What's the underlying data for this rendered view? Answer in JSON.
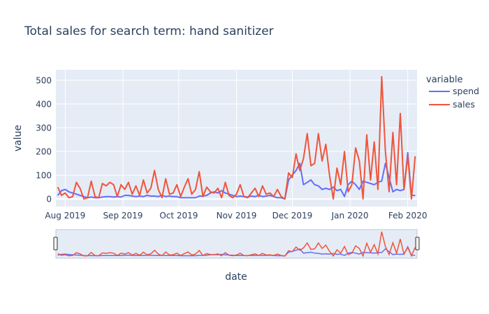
{
  "chart_data": {
    "type": "line",
    "title": "Total sales for search term: hand sanitizer",
    "xlabel": "date",
    "ylabel": "value",
    "x_start": "2019-07-28",
    "x_step_days": 2,
    "xlim": [
      "2019-07-27",
      "2020-02-06"
    ],
    "ylim": [
      -32,
      544
    ],
    "yticks": [
      0,
      100,
      200,
      300,
      400,
      500
    ],
    "xticks": [
      {
        "date": "2019-08-01",
        "label": "Aug 2019"
      },
      {
        "date": "2019-09-01",
        "label": "Sep 2019"
      },
      {
        "date": "2019-10-01",
        "label": "Oct 2019"
      },
      {
        "date": "2019-11-01",
        "label": "Nov 2019"
      },
      {
        "date": "2019-12-01",
        "label": "Dec 2019"
      },
      {
        "date": "2020-01-01",
        "label": "Jan 2020"
      },
      {
        "date": "2020-02-01",
        "label": "Feb 2020"
      }
    ],
    "grid": true,
    "legend": {
      "title": "variable",
      "placement": "top-right outside"
    },
    "rangeslider": true,
    "series": [
      {
        "name": "spend",
        "color": "#636efa",
        "values": [
          15,
          35,
          40,
          30,
          25,
          20,
          15,
          10,
          5,
          8,
          5,
          5,
          8,
          10,
          10,
          8,
          10,
          8,
          15,
          15,
          12,
          10,
          12,
          10,
          15,
          12,
          12,
          10,
          15,
          10,
          12,
          10,
          10,
          5,
          5,
          5,
          5,
          5,
          12,
          12,
          15,
          25,
          30,
          25,
          35,
          25,
          20,
          15,
          10,
          12,
          10,
          8,
          12,
          10,
          15,
          10,
          12,
          15,
          10,
          5,
          5,
          0,
          80,
          100,
          120,
          150,
          60,
          70,
          80,
          60,
          55,
          40,
          45,
          40,
          50,
          35,
          40,
          10,
          60,
          75,
          60,
          40,
          75,
          70,
          65,
          60,
          70,
          75,
          150,
          90,
          30,
          40,
          35,
          40,
          195,
          15,
          15
        ]
      },
      {
        "name": "sales",
        "color": "#ef553b",
        "values": [
          50,
          15,
          25,
          5,
          10,
          70,
          45,
          0,
          5,
          75,
          10,
          5,
          65,
          55,
          70,
          60,
          10,
          60,
          40,
          70,
          20,
          55,
          15,
          80,
          25,
          45,
          120,
          40,
          5,
          85,
          20,
          25,
          60,
          10,
          50,
          85,
          20,
          40,
          115,
          10,
          50,
          30,
          25,
          45,
          5,
          70,
          15,
          5,
          20,
          60,
          10,
          5,
          25,
          45,
          10,
          55,
          20,
          25,
          10,
          40,
          10,
          0,
          110,
          90,
          190,
          120,
          170,
          275,
          140,
          150,
          275,
          160,
          230,
          100,
          0,
          130,
          60,
          200,
          30,
          60,
          215,
          160,
          0,
          270,
          80,
          240,
          40,
          515,
          200,
          30,
          280,
          60,
          360,
          40,
          180,
          0,
          180
        ]
      }
    ]
  }
}
